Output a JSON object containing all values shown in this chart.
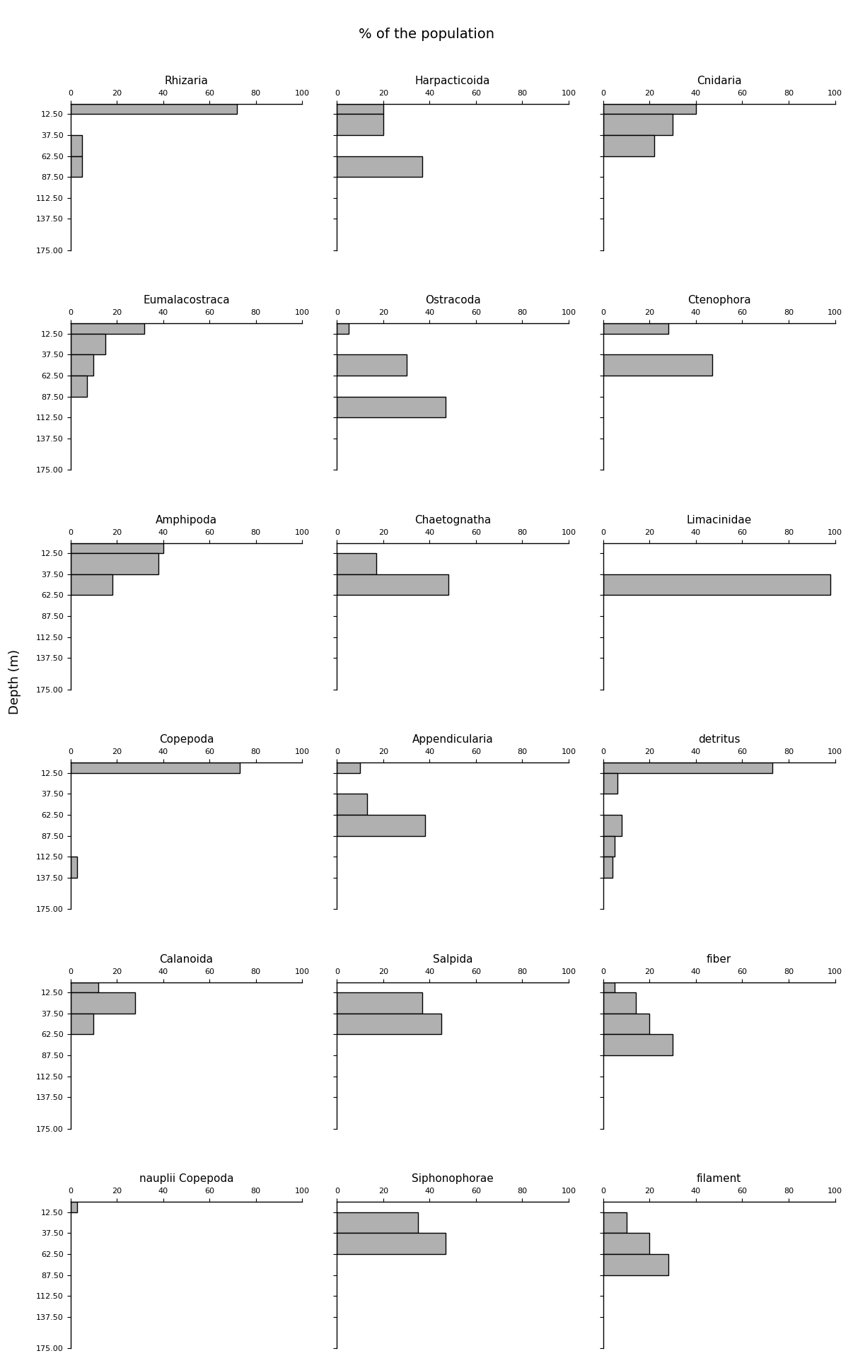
{
  "title": "% of the population",
  "depth_labels": [
    "12.50",
    "37.50",
    "62.50",
    "87.50",
    "112.50",
    "137.50",
    "175.00"
  ],
  "depth_values": [
    12.5,
    37.5,
    62.5,
    87.5,
    112.5,
    137.5,
    175.0
  ],
  "xlim": [
    0,
    100
  ],
  "xticks": [
    0,
    20,
    40,
    60,
    80,
    100
  ],
  "bar_color": "#b0b0b0",
  "bar_edge_color": "#000000",
  "plots": [
    {
      "title": "Rhizaria",
      "values": [
        72,
        0,
        5,
        5,
        0,
        0,
        0
      ]
    },
    {
      "title": "Harpacticoida",
      "values": [
        20,
        20,
        0,
        37,
        0,
        0,
        0
      ]
    },
    {
      "title": "Cnidaria",
      "values": [
        40,
        30,
        22,
        0,
        0,
        0,
        0
      ]
    },
    {
      "title": "Eumalacostraca",
      "values": [
        32,
        15,
        10,
        7,
        0,
        0,
        0
      ]
    },
    {
      "title": "Ostracoda",
      "values": [
        5,
        0,
        30,
        0,
        47,
        0,
        0
      ]
    },
    {
      "title": "Ctenophora",
      "values": [
        28,
        0,
        47,
        0,
        0,
        0,
        0
      ]
    },
    {
      "title": "Amphipoda",
      "values": [
        40,
        38,
        18,
        0,
        0,
        0,
        0
      ]
    },
    {
      "title": "Chaetognatha",
      "values": [
        0,
        17,
        48,
        0,
        0,
        0,
        0
      ]
    },
    {
      "title": "Limacinidae",
      "values": [
        0,
        0,
        98,
        0,
        0,
        0,
        0
      ]
    },
    {
      "title": "Copepoda",
      "values": [
        73,
        0,
        0,
        0,
        0,
        3,
        0
      ]
    },
    {
      "title": "Appendicularia",
      "values": [
        10,
        0,
        13,
        38,
        0,
        0,
        0
      ]
    },
    {
      "title": "detritus",
      "values": [
        73,
        6,
        0,
        8,
        5,
        4,
        0
      ]
    },
    {
      "title": "Calanoida",
      "values": [
        12,
        28,
        10,
        0,
        0,
        0,
        0
      ]
    },
    {
      "title": "Salpida",
      "values": [
        0,
        37,
        45,
        0,
        0,
        0,
        0
      ]
    },
    {
      "title": "fiber",
      "values": [
        5,
        14,
        20,
        30,
        0,
        0,
        0
      ]
    },
    {
      "title": "nauplii Copepoda",
      "values": [
        3,
        0,
        0,
        0,
        0,
        0,
        0
      ]
    },
    {
      "title": "Siphonophorae",
      "values": [
        0,
        35,
        47,
        0,
        0,
        0,
        0
      ]
    },
    {
      "title": "filament",
      "values": [
        0,
        10,
        20,
        28,
        0,
        0,
        0
      ]
    }
  ]
}
